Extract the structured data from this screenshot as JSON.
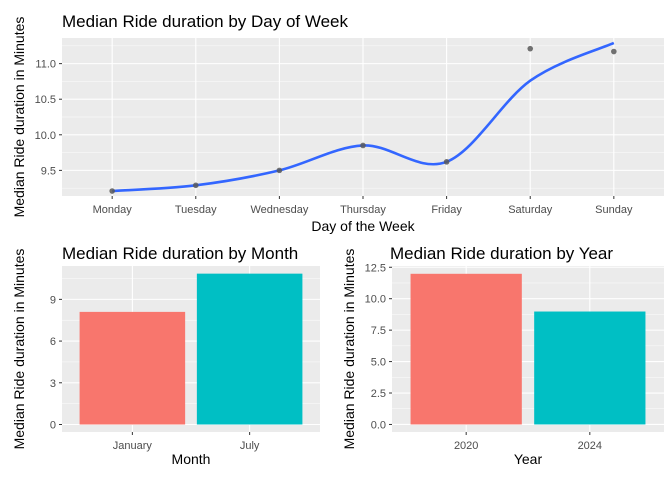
{
  "chart_data": [
    {
      "type": "scatter",
      "title": "Median Ride duration by Day of Week",
      "xlabel": "Day of the Week",
      "ylabel": "Median Ride duration in Minutes",
      "categories": [
        "Monday",
        "Tuesday",
        "Wednesday",
        "Thursday",
        "Friday",
        "Saturday",
        "Sunday"
      ],
      "values": [
        9.21,
        9.29,
        9.5,
        9.85,
        9.62,
        11.21,
        11.17
      ],
      "smooth_line": {
        "color": "#3366ff",
        "method": "loess"
      },
      "point_color": "#595959",
      "ylim": [
        9.14,
        11.36
      ],
      "yticks": [
        9.5,
        10.0,
        10.5,
        11.0
      ],
      "ytick_labels": [
        "9.5",
        "10.0",
        "10.5",
        "11.0"
      ],
      "grid": true,
      "legend": "none"
    },
    {
      "type": "bar",
      "title": "Median Ride duration by Month",
      "xlabel": "Month",
      "ylabel": "Median Ride duration in Minutes",
      "categories": [
        "January",
        "July"
      ],
      "values": [
        8.1,
        10.85
      ],
      "colors": [
        "#f8766d",
        "#00bfc4"
      ],
      "ylim": [
        -0.54,
        11.4
      ],
      "yticks": [
        0,
        3,
        6,
        9
      ],
      "ytick_labels": [
        "0",
        "3",
        "6",
        "9"
      ],
      "grid": true,
      "legend": "none"
    },
    {
      "type": "bar",
      "title": "Median Ride duration by Year",
      "xlabel": "Year",
      "ylabel": "Median Ride duration in Minutes",
      "categories": [
        "2020",
        "2024"
      ],
      "values": [
        11.98,
        8.98
      ],
      "colors": [
        "#f8766d",
        "#00bfc4"
      ],
      "ylim": [
        -0.6,
        12.6
      ],
      "yticks": [
        0,
        2.5,
        5,
        7.5,
        10,
        12.5
      ],
      "ytick_labels": [
        "0.0",
        "2.5",
        "5.0",
        "7.5",
        "10.0",
        "12.5"
      ],
      "grid": true,
      "legend": "none"
    }
  ]
}
